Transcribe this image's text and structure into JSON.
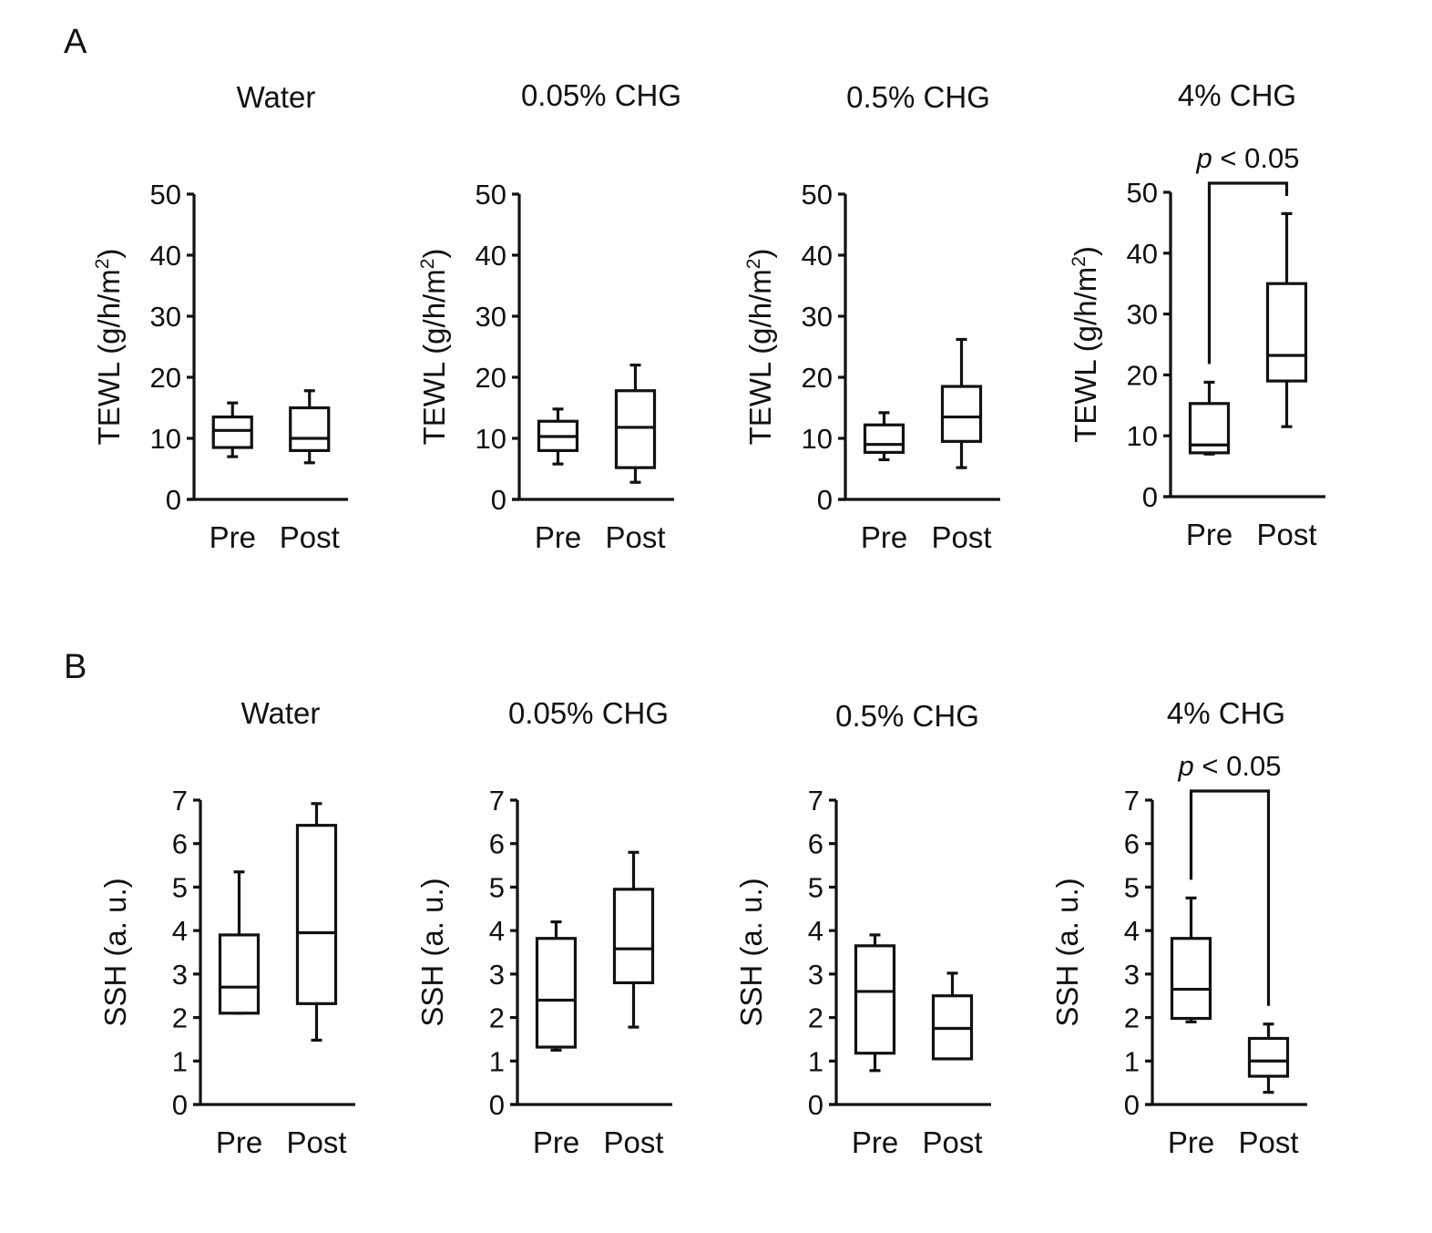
{
  "panels": [
    {
      "letter": "A"
    },
    {
      "letter": "B"
    }
  ],
  "chart_data": [
    {
      "type": "boxplot",
      "panel": "A",
      "title": "Water",
      "ylabel": "TEWL (g/h/m²)",
      "ylim": [
        0,
        50
      ],
      "yticks": [
        0,
        10,
        20,
        30,
        40,
        50
      ],
      "categories": [
        "Pre",
        "Post"
      ],
      "boxes": [
        {
          "min": 7,
          "q1": 8.5,
          "median": 11.3,
          "q3": 13.5,
          "max": 15.8
        },
        {
          "min": 6,
          "q1": 8,
          "median": 10,
          "q3": 15,
          "max": 17.8
        }
      ],
      "significance": null
    },
    {
      "type": "boxplot",
      "panel": "A",
      "title": "0.05% CHG",
      "ylabel": "TEWL (g/h/m²)",
      "ylim": [
        0,
        50
      ],
      "yticks": [
        0,
        10,
        20,
        30,
        40,
        50
      ],
      "categories": [
        "Pre",
        "Post"
      ],
      "boxes": [
        {
          "min": 5.8,
          "q1": 8,
          "median": 10.3,
          "q3": 12.8,
          "max": 14.8
        },
        {
          "min": 2.8,
          "q1": 5.2,
          "median": 11.8,
          "q3": 17.8,
          "max": 22
        }
      ],
      "significance": null
    },
    {
      "type": "boxplot",
      "panel": "A",
      "title": "0.5% CHG",
      "ylabel": "TEWL (g/h/m²)",
      "ylim": [
        0,
        50
      ],
      "yticks": [
        0,
        10,
        20,
        30,
        40,
        50
      ],
      "categories": [
        "Pre",
        "Post"
      ],
      "boxes": [
        {
          "min": 6.5,
          "q1": 7.7,
          "median": 9,
          "q3": 12.2,
          "max": 14.2
        },
        {
          "min": 5.2,
          "q1": 9.5,
          "median": 13.5,
          "q3": 18.5,
          "max": 26.2
        }
      ],
      "significance": null
    },
    {
      "type": "boxplot",
      "panel": "A",
      "title": "4% CHG",
      "ylabel": "TEWL (g/h/m²)",
      "ylim": [
        0,
        50
      ],
      "yticks": [
        0,
        10,
        20,
        30,
        40,
        50
      ],
      "categories": [
        "Pre",
        "Post"
      ],
      "boxes": [
        {
          "min": 7,
          "q1": 7.2,
          "median": 8.5,
          "q3": 15.3,
          "max": 18.8
        },
        {
          "min": 11.5,
          "q1": 19,
          "median": 23.2,
          "q3": 35,
          "max": 46.5
        }
      ],
      "significance": {
        "label_italic": "p",
        "label_rest": " < 0.05"
      }
    },
    {
      "type": "boxplot",
      "panel": "B",
      "title": "Water",
      "ylabel": "SSH (a. u.)",
      "ylim": [
        0,
        7
      ],
      "yticks": [
        0,
        1,
        2,
        3,
        4,
        5,
        6,
        7
      ],
      "categories": [
        "Pre",
        "Post"
      ],
      "boxes": [
        {
          "min": 2.1,
          "q1": 2.1,
          "median": 2.7,
          "q3": 3.9,
          "max": 5.35
        },
        {
          "min": 1.48,
          "q1": 2.32,
          "median": 3.95,
          "q3": 6.42,
          "max": 6.92
        }
      ],
      "significance": null
    },
    {
      "type": "boxplot",
      "panel": "B",
      "title": "0.05% CHG",
      "ylabel": "SSH (a. u.)",
      "ylim": [
        0,
        7
      ],
      "yticks": [
        0,
        1,
        2,
        3,
        4,
        5,
        6,
        7
      ],
      "categories": [
        "Pre",
        "Post"
      ],
      "boxes": [
        {
          "min": 1.25,
          "q1": 1.32,
          "median": 2.4,
          "q3": 3.82,
          "max": 4.2
        },
        {
          "min": 1.78,
          "q1": 2.8,
          "median": 3.58,
          "q3": 4.95,
          "max": 5.8
        }
      ],
      "significance": null
    },
    {
      "type": "boxplot",
      "panel": "B",
      "title": "0.5% CHG",
      "ylabel": "SSH (a. u.)",
      "ylim": [
        0,
        7
      ],
      "yticks": [
        0,
        1,
        2,
        3,
        4,
        5,
        6,
        7
      ],
      "categories": [
        "Pre",
        "Post"
      ],
      "boxes": [
        {
          "min": 0.78,
          "q1": 1.18,
          "median": 2.6,
          "q3": 3.65,
          "max": 3.9
        },
        {
          "min": 1.05,
          "q1": 1.05,
          "median": 1.75,
          "q3": 2.5,
          "max": 3.02
        }
      ],
      "significance": null
    },
    {
      "type": "boxplot",
      "panel": "B",
      "title": "4% CHG",
      "ylabel": "SSH (a. u.)",
      "ylim": [
        0,
        7
      ],
      "yticks": [
        0,
        1,
        2,
        3,
        4,
        5,
        6,
        7
      ],
      "categories": [
        "Pre",
        "Post"
      ],
      "boxes": [
        {
          "min": 1.9,
          "q1": 1.98,
          "median": 2.65,
          "q3": 3.82,
          "max": 4.75
        },
        {
          "min": 0.28,
          "q1": 0.65,
          "median": 1,
          "q3": 1.52,
          "max": 1.85
        }
      ],
      "significance": {
        "label_italic": "p",
        "label_rest": " < 0.05"
      }
    }
  ]
}
